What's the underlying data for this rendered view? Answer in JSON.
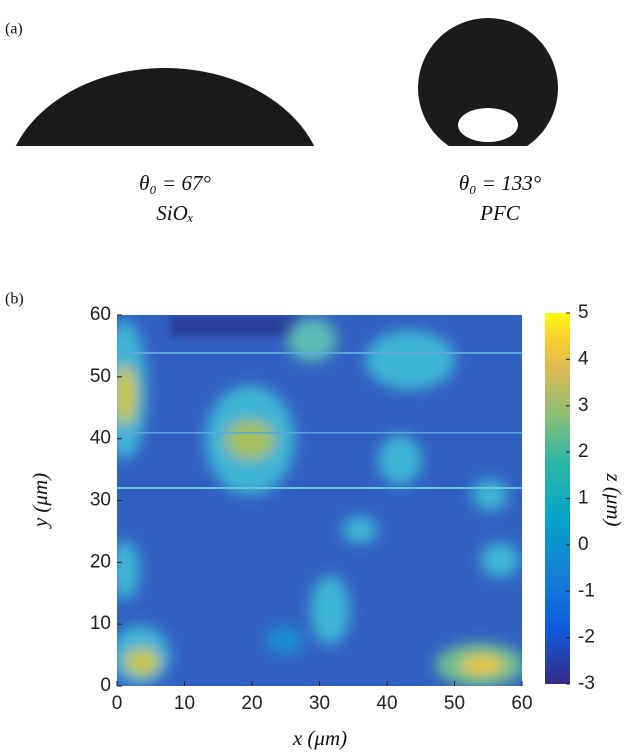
{
  "panel_a": {
    "label": "(a)",
    "drops": [
      {
        "angle": "θ₀ = 67°",
        "material": "SiOₓ"
      },
      {
        "angle": "θ₀ = 133°",
        "material": "PFC"
      }
    ]
  },
  "panel_b": {
    "label": "(b)",
    "xlabel": "x (μm)",
    "ylabel": "y (μm)",
    "colorbar_label": "z (μm)",
    "xlim": [
      0,
      60
    ],
    "xticks": [
      0,
      10,
      20,
      30,
      40,
      50,
      60
    ],
    "ylim": [
      0,
      60
    ],
    "yticks": [
      0,
      10,
      20,
      30,
      40,
      50,
      60
    ],
    "clim": [
      -3,
      5
    ],
    "cticks": [
      -3,
      -2,
      -1,
      0,
      1,
      2,
      3,
      4,
      5
    ]
  }
}
